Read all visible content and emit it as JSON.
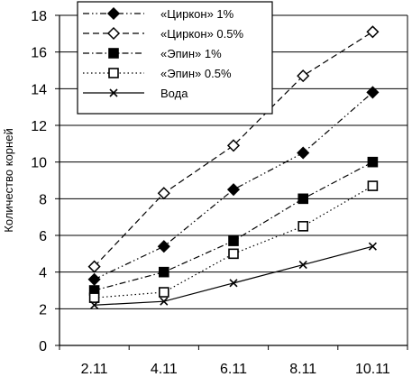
{
  "chart_data": {
    "type": "line",
    "title": "",
    "xlabel": "",
    "ylabel": "Количество корней",
    "categories": [
      "2.11",
      "4.11",
      "6.11",
      "8.11",
      "10.11"
    ],
    "ylim": [
      0,
      18
    ],
    "yticks": [
      0,
      2,
      4,
      6,
      8,
      10,
      12,
      14,
      16,
      18
    ],
    "grid": "horizontal",
    "legend_position": "top-left",
    "series": [
      {
        "name": "«Циркон» 1%",
        "values": [
          3.6,
          5.4,
          8.5,
          10.5,
          13.8
        ],
        "marker": "diamond-filled",
        "dash": "dash-dot-dot"
      },
      {
        "name": "«Циркон» 0.5%",
        "values": [
          4.3,
          8.3,
          10.9,
          14.7,
          17.1
        ],
        "marker": "diamond-open",
        "dash": "dashed"
      },
      {
        "name": "«Эпин» 1%",
        "values": [
          3.0,
          4.0,
          5.7,
          8.0,
          10.0
        ],
        "marker": "square-filled",
        "dash": "dash-dot"
      },
      {
        "name": "«Эпин» 0.5%",
        "values": [
          2.6,
          2.9,
          5.0,
          6.5,
          8.7
        ],
        "marker": "square-open",
        "dash": "dotted"
      },
      {
        "name": "Вода",
        "values": [
          2.2,
          2.4,
          3.4,
          4.4,
          5.4
        ],
        "marker": "x",
        "dash": "solid"
      }
    ]
  }
}
